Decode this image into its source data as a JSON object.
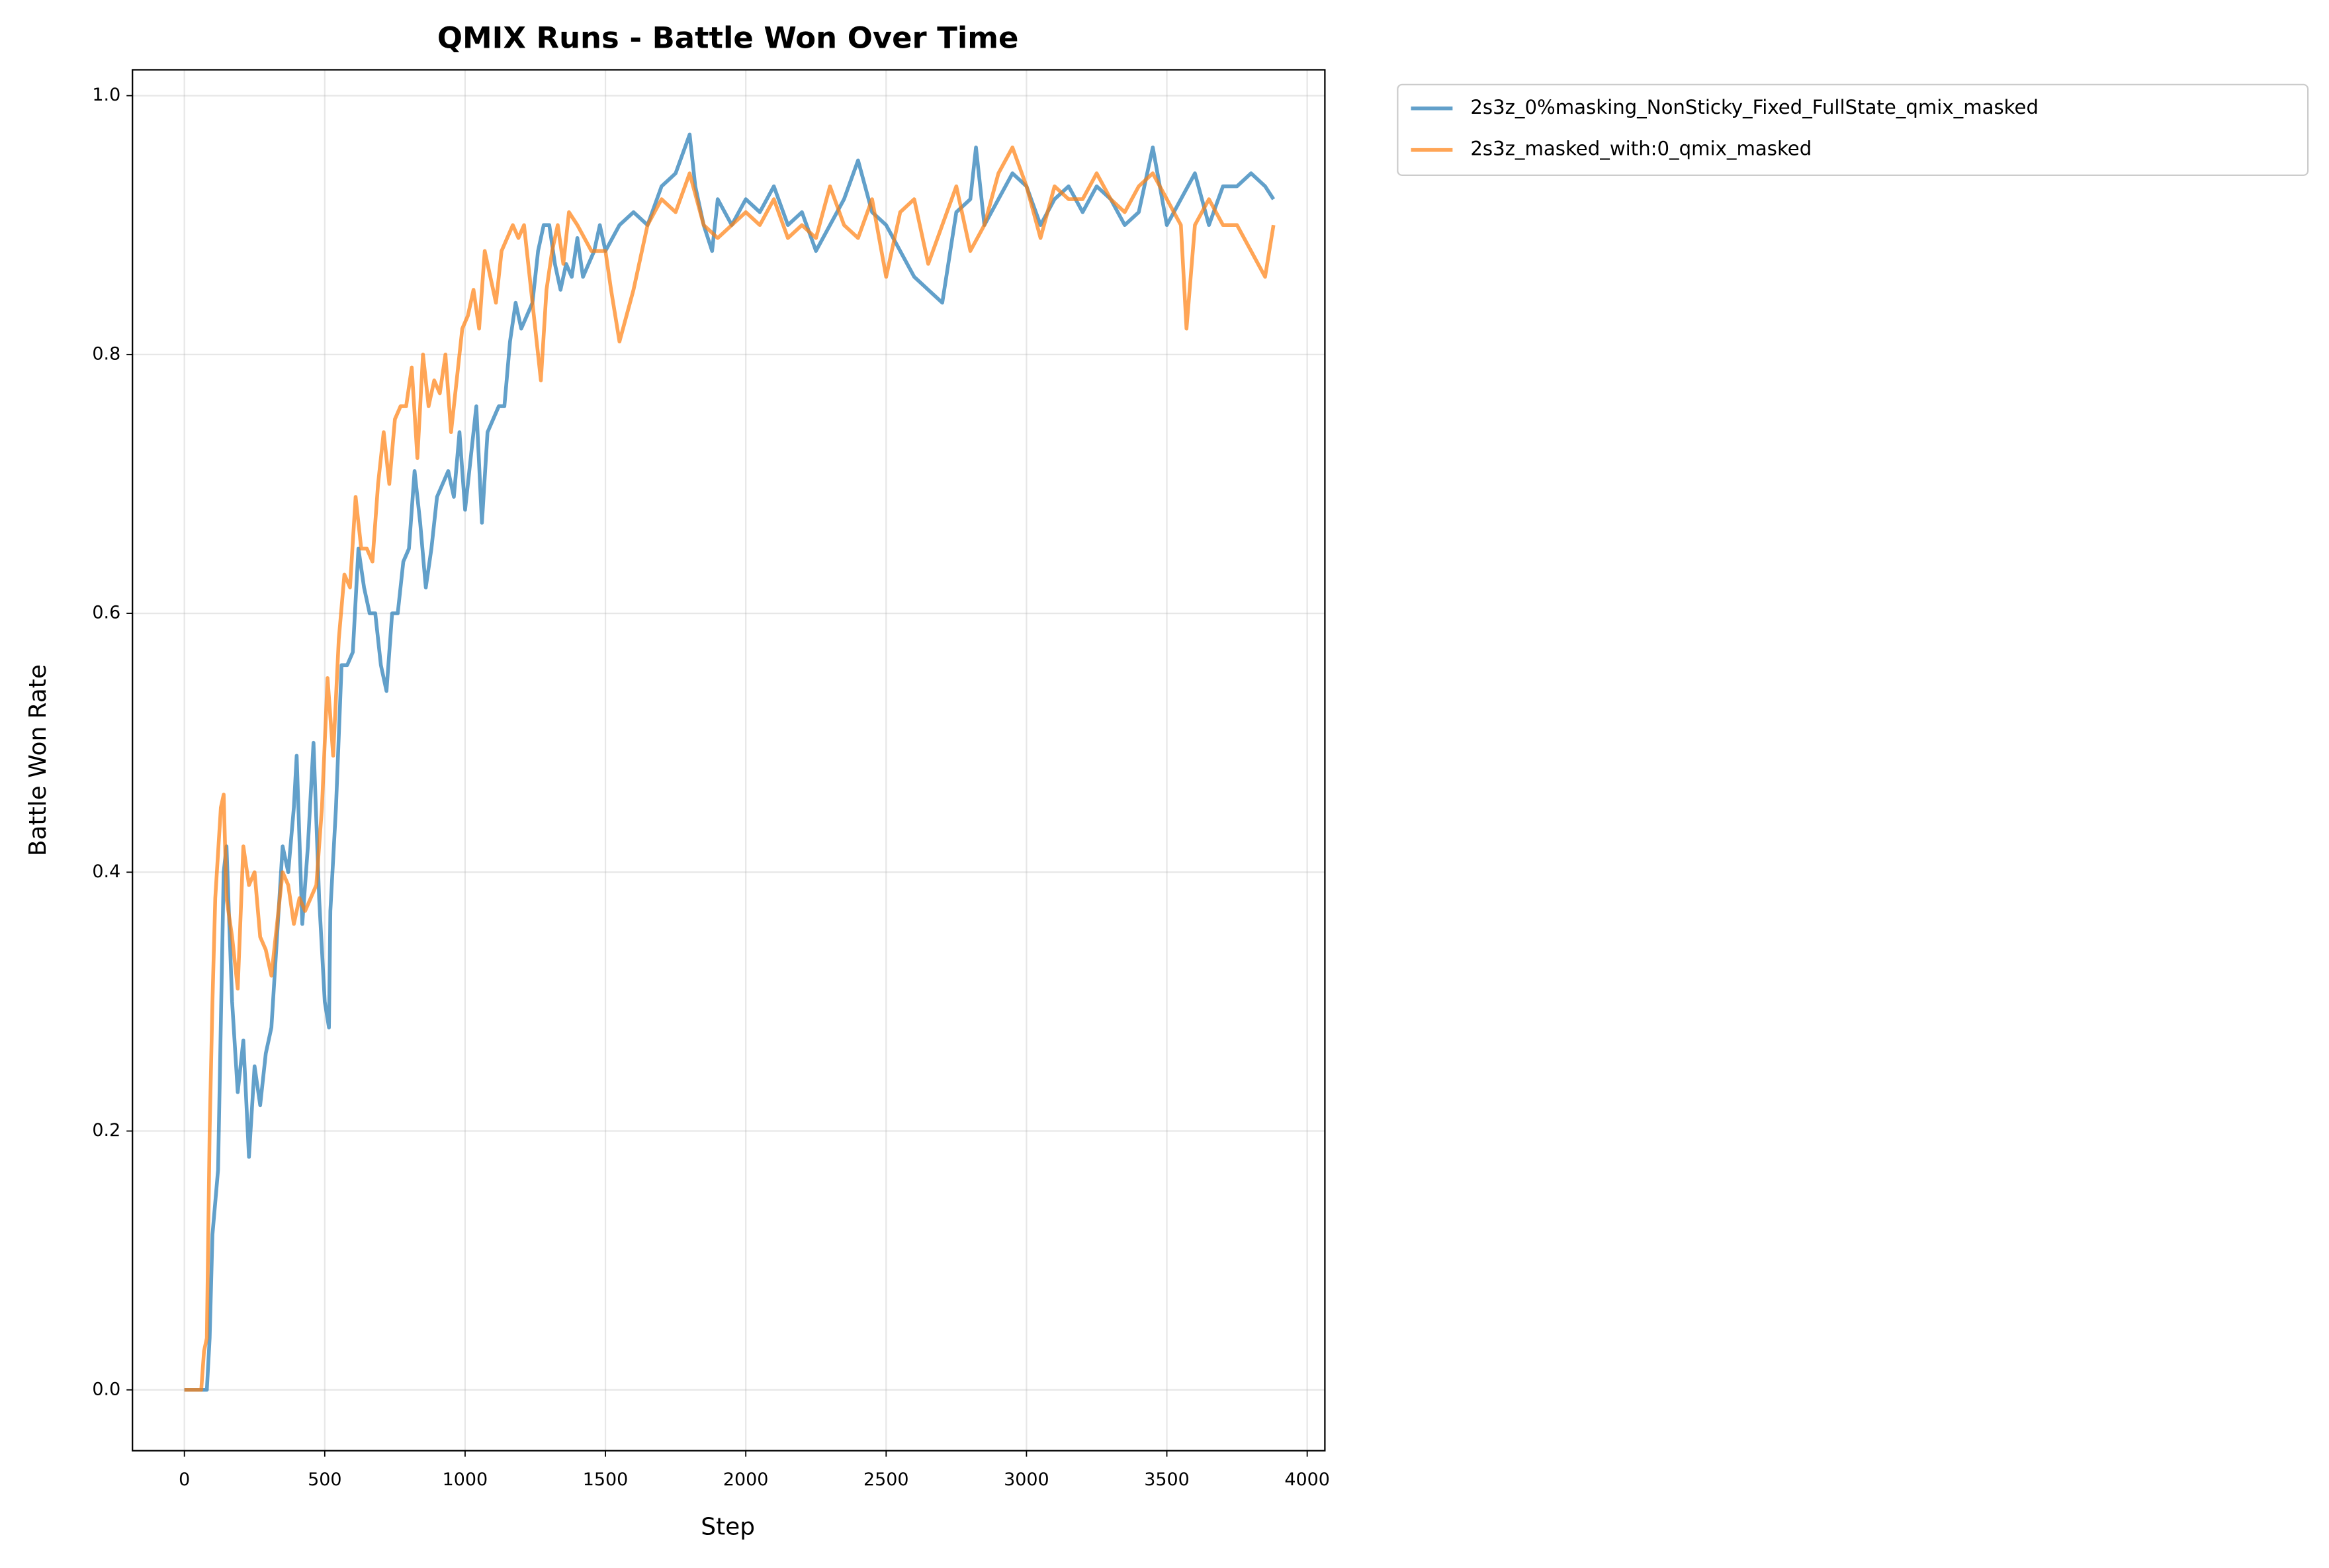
{
  "chart_data": {
    "type": "line",
    "title": "QMIX Runs - Battle Won Over Time",
    "x_label": "Step",
    "y_label": "Battle Won Rate",
    "xlim": [
      -185,
      4063
    ],
    "ylim": [
      -0.047,
      1.02
    ],
    "xticks": [
      0,
      500,
      1000,
      1500,
      2000,
      2500,
      3000,
      3500,
      4000
    ],
    "yticks": [
      {
        "value": 0,
        "label": "0.0"
      },
      0.2,
      0.4,
      0.6,
      0.8,
      {
        "value": 1,
        "label": "1.0"
      }
    ],
    "grid": true,
    "legend": "outside upper right",
    "series": [
      {
        "name": "2s3z_0%masking_NonSticky_Fixed_FullState_qmix_masked",
        "color": "#1f77b4",
        "x": [
          0,
          80,
          90,
          100,
          120,
          140,
          150,
          170,
          190,
          210,
          230,
          250,
          270,
          290,
          310,
          330,
          350,
          370,
          390,
          400,
          420,
          440,
          460,
          480,
          500,
          515,
          520,
          540,
          560,
          580,
          600,
          620,
          640,
          660,
          680,
          700,
          720,
          740,
          760,
          780,
          800,
          820,
          840,
          860,
          880,
          900,
          920,
          940,
          960,
          980,
          1000,
          1020,
          1040,
          1060,
          1080,
          1100,
          1120,
          1140,
          1160,
          1180,
          1200,
          1220,
          1240,
          1260,
          1280,
          1300,
          1320,
          1340,
          1360,
          1380,
          1400,
          1420,
          1440,
          1460,
          1480,
          1500,
          1550,
          1600,
          1650,
          1700,
          1750,
          1800,
          1820,
          1850,
          1880,
          1900,
          1950,
          2000,
          2050,
          2100,
          2150,
          2200,
          2250,
          2300,
          2350,
          2400,
          2450,
          2500,
          2550,
          2600,
          2650,
          2700,
          2750,
          2800,
          2820,
          2850,
          2900,
          2950,
          3000,
          3050,
          3100,
          3150,
          3200,
          3250,
          3300,
          3350,
          3400,
          3450,
          3500,
          3550,
          3600,
          3650,
          3700,
          3750,
          3800,
          3850,
          3880
        ],
        "values": [
          0,
          0,
          0.04,
          0.12,
          0.17,
          0.4,
          0.42,
          0.3,
          0.23,
          0.27,
          0.18,
          0.25,
          0.22,
          0.26,
          0.28,
          0.35,
          0.42,
          0.4,
          0.45,
          0.49,
          0.36,
          0.42,
          0.5,
          0.38,
          0.3,
          0.28,
          0.37,
          0.45,
          0.56,
          0.56,
          0.57,
          0.65,
          0.62,
          0.6,
          0.6,
          0.56,
          0.54,
          0.6,
          0.6,
          0.64,
          0.65,
          0.71,
          0.67,
          0.62,
          0.65,
          0.69,
          0.7,
          0.71,
          0.69,
          0.74,
          0.68,
          0.72,
          0.76,
          0.67,
          0.74,
          0.75,
          0.76,
          0.76,
          0.81,
          0.84,
          0.82,
          0.83,
          0.84,
          0.88,
          0.9,
          0.9,
          0.87,
          0.85,
          0.87,
          0.86,
          0.89,
          0.86,
          0.87,
          0.88,
          0.9,
          0.88,
          0.9,
          0.91,
          0.9,
          0.93,
          0.94,
          0.97,
          0.93,
          0.9,
          0.88,
          0.92,
          0.9,
          0.92,
          0.91,
          0.93,
          0.9,
          0.91,
          0.88,
          0.9,
          0.92,
          0.95,
          0.91,
          0.9,
          0.88,
          0.86,
          0.85,
          0.84,
          0.91,
          0.92,
          0.96,
          0.9,
          0.92,
          0.94,
          0.93,
          0.9,
          0.92,
          0.93,
          0.91,
          0.93,
          0.92,
          0.9,
          0.91,
          0.96,
          0.9,
          0.92,
          0.94,
          0.9,
          0.93,
          0.93,
          0.94,
          0.93,
          0.92
        ]
      },
      {
        "name": "2s3z_masked_with:0_qmix_masked",
        "color": "#ff7f0e",
        "x": [
          0,
          60,
          70,
          80,
          90,
          100,
          110,
          130,
          140,
          150,
          170,
          190,
          210,
          230,
          250,
          270,
          290,
          310,
          330,
          350,
          370,
          390,
          410,
          430,
          450,
          470,
          490,
          500,
          510,
          530,
          550,
          570,
          590,
          610,
          630,
          650,
          670,
          690,
          710,
          730,
          750,
          770,
          790,
          810,
          830,
          850,
          870,
          890,
          910,
          930,
          950,
          970,
          990,
          1010,
          1030,
          1050,
          1070,
          1090,
          1110,
          1130,
          1150,
          1170,
          1190,
          1210,
          1230,
          1250,
          1270,
          1290,
          1310,
          1330,
          1350,
          1370,
          1400,
          1450,
          1500,
          1520,
          1550,
          1600,
          1650,
          1700,
          1750,
          1800,
          1850,
          1900,
          1950,
          2000,
          2050,
          2100,
          2150,
          2200,
          2250,
          2300,
          2350,
          2400,
          2450,
          2500,
          2550,
          2600,
          2650,
          2700,
          2750,
          2800,
          2850,
          2900,
          2950,
          3000,
          3050,
          3100,
          3150,
          3200,
          3250,
          3300,
          3350,
          3400,
          3450,
          3500,
          3550,
          3570,
          3600,
          3650,
          3700,
          3750,
          3800,
          3850,
          3880
        ],
        "values": [
          0,
          0,
          0.03,
          0.04,
          0.2,
          0.3,
          0.38,
          0.45,
          0.46,
          0.38,
          0.35,
          0.31,
          0.42,
          0.39,
          0.4,
          0.35,
          0.34,
          0.32,
          0.36,
          0.4,
          0.39,
          0.36,
          0.38,
          0.37,
          0.38,
          0.39,
          0.45,
          0.5,
          0.55,
          0.49,
          0.58,
          0.63,
          0.62,
          0.69,
          0.65,
          0.65,
          0.64,
          0.7,
          0.74,
          0.7,
          0.75,
          0.76,
          0.76,
          0.79,
          0.72,
          0.8,
          0.76,
          0.78,
          0.77,
          0.8,
          0.74,
          0.78,
          0.82,
          0.83,
          0.85,
          0.82,
          0.88,
          0.86,
          0.84,
          0.88,
          0.89,
          0.9,
          0.89,
          0.9,
          0.86,
          0.82,
          0.78,
          0.85,
          0.88,
          0.9,
          0.87,
          0.91,
          0.9,
          0.88,
          0.88,
          0.85,
          0.81,
          0.85,
          0.9,
          0.92,
          0.91,
          0.94,
          0.9,
          0.89,
          0.9,
          0.91,
          0.9,
          0.92,
          0.89,
          0.9,
          0.89,
          0.93,
          0.9,
          0.89,
          0.92,
          0.86,
          0.91,
          0.92,
          0.87,
          0.9,
          0.93,
          0.88,
          0.9,
          0.94,
          0.96,
          0.93,
          0.89,
          0.93,
          0.92,
          0.92,
          0.94,
          0.92,
          0.91,
          0.93,
          0.94,
          0.92,
          0.9,
          0.82,
          0.9,
          0.92,
          0.9,
          0.9,
          0.88,
          0.86,
          0.9
        ]
      }
    ]
  }
}
